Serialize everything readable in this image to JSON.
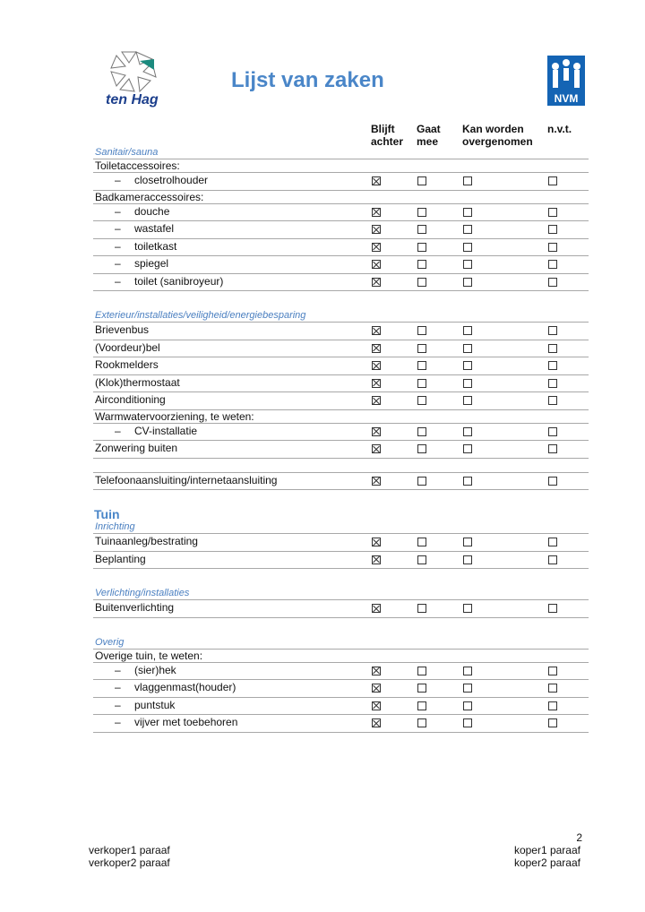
{
  "header": {
    "title": "Lijst van zaken",
    "logo_left": "ten Hag",
    "logo_right": "NVM"
  },
  "columns": [
    "Blijft achter",
    "Gaat mee",
    "Kan worden overgenomen",
    "n.v.t."
  ],
  "column_lines": [
    [
      "Blijft",
      "achter"
    ],
    [
      "Gaat",
      "mee"
    ],
    [
      "Kan worden",
      "overgenomen"
    ],
    [
      "n.v.t."
    ]
  ],
  "rows": [
    {
      "type": "section",
      "label": "Sanitair/sauna"
    },
    {
      "type": "group",
      "label": "Toiletaccessoires:"
    },
    {
      "type": "sub",
      "label": "closetrolhouder",
      "checked": [
        true,
        false,
        false,
        false
      ]
    },
    {
      "type": "group",
      "label": "Badkameraccessoires:"
    },
    {
      "type": "sub",
      "label": "douche",
      "checked": [
        true,
        false,
        false,
        false
      ]
    },
    {
      "type": "sub",
      "label": "wastafel",
      "checked": [
        true,
        false,
        false,
        false
      ]
    },
    {
      "type": "sub",
      "label": "toiletkast",
      "checked": [
        true,
        false,
        false,
        false
      ]
    },
    {
      "type": "sub",
      "label": "spiegel",
      "checked": [
        true,
        false,
        false,
        false
      ]
    },
    {
      "type": "sub",
      "label": "toilet (sanibroyeur)",
      "checked": [
        true,
        false,
        false,
        false
      ]
    },
    {
      "type": "section",
      "gap": true,
      "label": "Exterieur/installaties/veiligheid/energiebesparing"
    },
    {
      "type": "item",
      "label": "Brievenbus",
      "checked": [
        true,
        false,
        false,
        false
      ]
    },
    {
      "type": "item",
      "label": "(Voordeur)bel",
      "checked": [
        true,
        false,
        false,
        false
      ]
    },
    {
      "type": "item",
      "label": "Rookmelders",
      "checked": [
        true,
        false,
        false,
        false
      ]
    },
    {
      "type": "item",
      "label": "(Klok)thermostaat",
      "checked": [
        true,
        false,
        false,
        false
      ]
    },
    {
      "type": "item",
      "label": "Airconditioning",
      "checked": [
        true,
        false,
        false,
        false
      ]
    },
    {
      "type": "group",
      "label": "Warmwatervoorziening, te weten:"
    },
    {
      "type": "sub",
      "label": "CV-installatie",
      "checked": [
        true,
        false,
        false,
        false
      ]
    },
    {
      "type": "item",
      "label": "Zonwering buiten",
      "checked": [
        true,
        false,
        false,
        false
      ]
    },
    {
      "type": "blank"
    },
    {
      "type": "item",
      "label": "Telefoonaansluiting/internetaansluiting",
      "checked": [
        true,
        false,
        false,
        false
      ]
    },
    {
      "type": "heading",
      "label": "Tuin"
    },
    {
      "type": "section",
      "label": "Inrichting"
    },
    {
      "type": "item",
      "label": "Tuinaanleg/bestrating",
      "checked": [
        true,
        false,
        false,
        false
      ]
    },
    {
      "type": "item",
      "label": "Beplanting",
      "checked": [
        true,
        false,
        false,
        false
      ]
    },
    {
      "type": "section",
      "gap": true,
      "label": "Verlichting/installaties"
    },
    {
      "type": "item",
      "label": "Buitenverlichting",
      "checked": [
        true,
        false,
        false,
        false
      ]
    },
    {
      "type": "section",
      "gap": true,
      "label": "Overig"
    },
    {
      "type": "group",
      "label": "Overige tuin, te weten:"
    },
    {
      "type": "sub",
      "label": "(sier)hek",
      "checked": [
        true,
        false,
        false,
        false
      ]
    },
    {
      "type": "sub",
      "label": "vlaggenmast(houder)",
      "checked": [
        true,
        false,
        false,
        false
      ]
    },
    {
      "type": "sub",
      "label": "puntstuk",
      "checked": [
        true,
        false,
        false,
        false
      ]
    },
    {
      "type": "sub",
      "label": "vijver met toebehoren",
      "checked": [
        true,
        false,
        false,
        false
      ]
    }
  ],
  "dash": "–",
  "footer": {
    "page": "2",
    "left": [
      "verkoper1 paraaf",
      "verkoper2 paraaf"
    ],
    "right": [
      "koper1 paraaf",
      "koper2 paraaf"
    ]
  },
  "colors": {
    "accent": "#4a86c8",
    "nvm": "#1464b4",
    "tenhag": "#1c3f8c"
  }
}
